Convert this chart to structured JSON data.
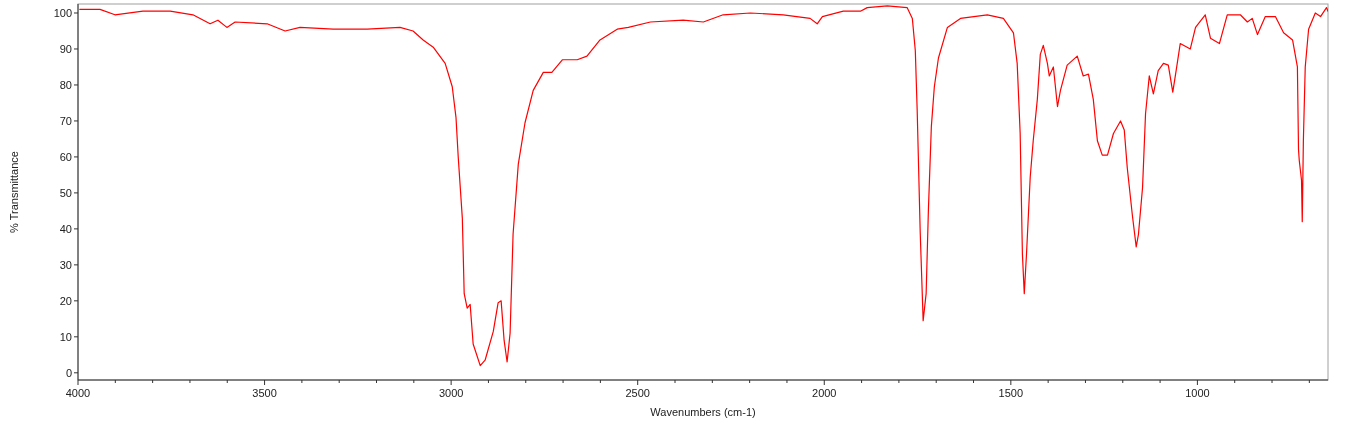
{
  "chart_data": {
    "type": "line",
    "xlabel": "Wavenumbers (cm-1)",
    "ylabel": "% Transmittance",
    "xlim": [
      4000,
      650
    ],
    "ylim": [
      -2,
      102.5
    ],
    "xticks": [
      4000,
      {
        "value": 3900,
        "label": null
      },
      {
        "value": 3800,
        "label": null
      },
      {
        "value": 3700,
        "label": null
      },
      {
        "value": 3600,
        "label": null
      },
      3500,
      {
        "value": 3400,
        "label": null
      },
      {
        "value": 3300,
        "label": null
      },
      {
        "value": 3200,
        "label": null
      },
      {
        "value": 3100,
        "label": null
      },
      3000,
      {
        "value": 2900,
        "label": null
      },
      {
        "value": 2800,
        "label": null
      },
      {
        "value": 2700,
        "label": null
      },
      {
        "value": 2600,
        "label": null
      },
      2500,
      {
        "value": 2400,
        "label": null
      },
      {
        "value": 2300,
        "label": null
      },
      {
        "value": 2200,
        "label": null
      },
      {
        "value": 2100,
        "label": null
      },
      2000,
      {
        "value": 1900,
        "label": null
      },
      {
        "value": 1800,
        "label": null
      },
      {
        "value": 1700,
        "label": null
      },
      {
        "value": 1600,
        "label": null
      },
      1500,
      {
        "value": 1400,
        "label": null
      },
      {
        "value": 1300,
        "label": null
      },
      {
        "value": 1200,
        "label": null
      },
      {
        "value": 1100,
        "label": null
      },
      1000,
      {
        "value": 900,
        "label": null
      },
      {
        "value": 800,
        "label": null
      },
      {
        "value": 700,
        "label": null
      }
    ],
    "yticks": [
      0,
      10,
      20,
      30,
      40,
      50,
      60,
      70,
      80,
      90,
      100
    ],
    "grid": false,
    "marker": "none",
    "line_style": "solid",
    "series": [
      {
        "color": "#ff0000",
        "x": [
          3995,
          3941,
          3901,
          3826,
          3753,
          3692,
          3646,
          3625,
          3601,
          3579,
          3493,
          3445,
          3405,
          3316,
          3225,
          3137,
          3102,
          3075,
          3048,
          3016,
          2997,
          2987,
          2981,
          2970,
          2965,
          2957,
          2949,
          2941,
          2922,
          2909,
          2887,
          2874,
          2866,
          2858,
          2850,
          2842,
          2834,
          2820,
          2802,
          2780,
          2753,
          2730,
          2702,
          2662,
          2636,
          2601,
          2555,
          2525,
          2466,
          2378,
          2324,
          2271,
          2198,
          2110,
          2038,
          2019,
          2005,
          1949,
          1903,
          1885,
          1831,
          1778,
          1764,
          1756,
          1751,
          1743,
          1735,
          1727,
          1721,
          1713,
          1705,
          1694,
          1670,
          1635,
          1563,
          1520,
          1493,
          1483,
          1475,
          1469,
          1464,
          1458,
          1448,
          1440,
          1429,
          1421,
          1413,
          1402,
          1397,
          1386,
          1375,
          1367,
          1349,
          1322,
          1306,
          1292,
          1279,
          1268,
          1255,
          1241,
          1225,
          1206,
          1196,
          1188,
          1174,
          1164,
          1158,
          1147,
          1139,
          1129,
          1118,
          1105,
          1091,
          1078,
          1066,
          1057,
          1046,
          1019,
          1005,
          979,
          965,
          941,
          920,
          885,
          866,
          853,
          839,
          818,
          791,
          769,
          745,
          732,
          729,
          727,
          721,
          719,
          716,
          711,
          702,
          684,
          670,
          654,
          650
        ],
        "values": [
          101,
          101,
          99.5,
          100.5,
          100.5,
          99.5,
          97,
          98,
          96,
          97.5,
          97,
          95,
          96,
          95.5,
          95.5,
          96,
          95,
          92.5,
          90.5,
          86,
          79.5,
          71,
          60,
          43,
          22,
          18,
          19,
          8,
          2,
          3.5,
          11.5,
          19.5,
          20,
          9,
          3,
          11,
          38.5,
          58,
          69.5,
          78.5,
          83.5,
          83.5,
          87,
          87,
          88,
          92.5,
          95.5,
          96,
          97.5,
          98,
          97.5,
          99.5,
          100,
          99.5,
          98.5,
          97,
          99,
          100.5,
          100.5,
          101.5,
          102,
          101.5,
          98.5,
          89.5,
          73,
          39.5,
          14.5,
          22,
          45,
          68.5,
          79.5,
          87.5,
          96,
          98.5,
          99.5,
          98.5,
          94.5,
          86,
          66.5,
          33,
          22,
          33,
          54.5,
          64.5,
          76,
          88.5,
          91,
          86,
          82.5,
          85,
          74,
          78.5,
          85.5,
          88,
          82.5,
          83,
          76,
          64.5,
          60.5,
          60.5,
          66.5,
          70,
          67.5,
          57,
          43.5,
          35,
          38.5,
          51.5,
          72,
          82.5,
          77.5,
          84,
          86,
          85.5,
          78,
          84,
          91.5,
          90,
          96,
          99.5,
          93,
          91.5,
          99.5,
          99.5,
          97.5,
          98.5,
          94,
          99,
          99,
          94.5,
          92.5,
          85,
          62,
          59,
          53.5,
          42,
          64.5,
          85,
          95.5,
          100,
          99,
          101.5,
          100.5
        ]
      }
    ]
  }
}
